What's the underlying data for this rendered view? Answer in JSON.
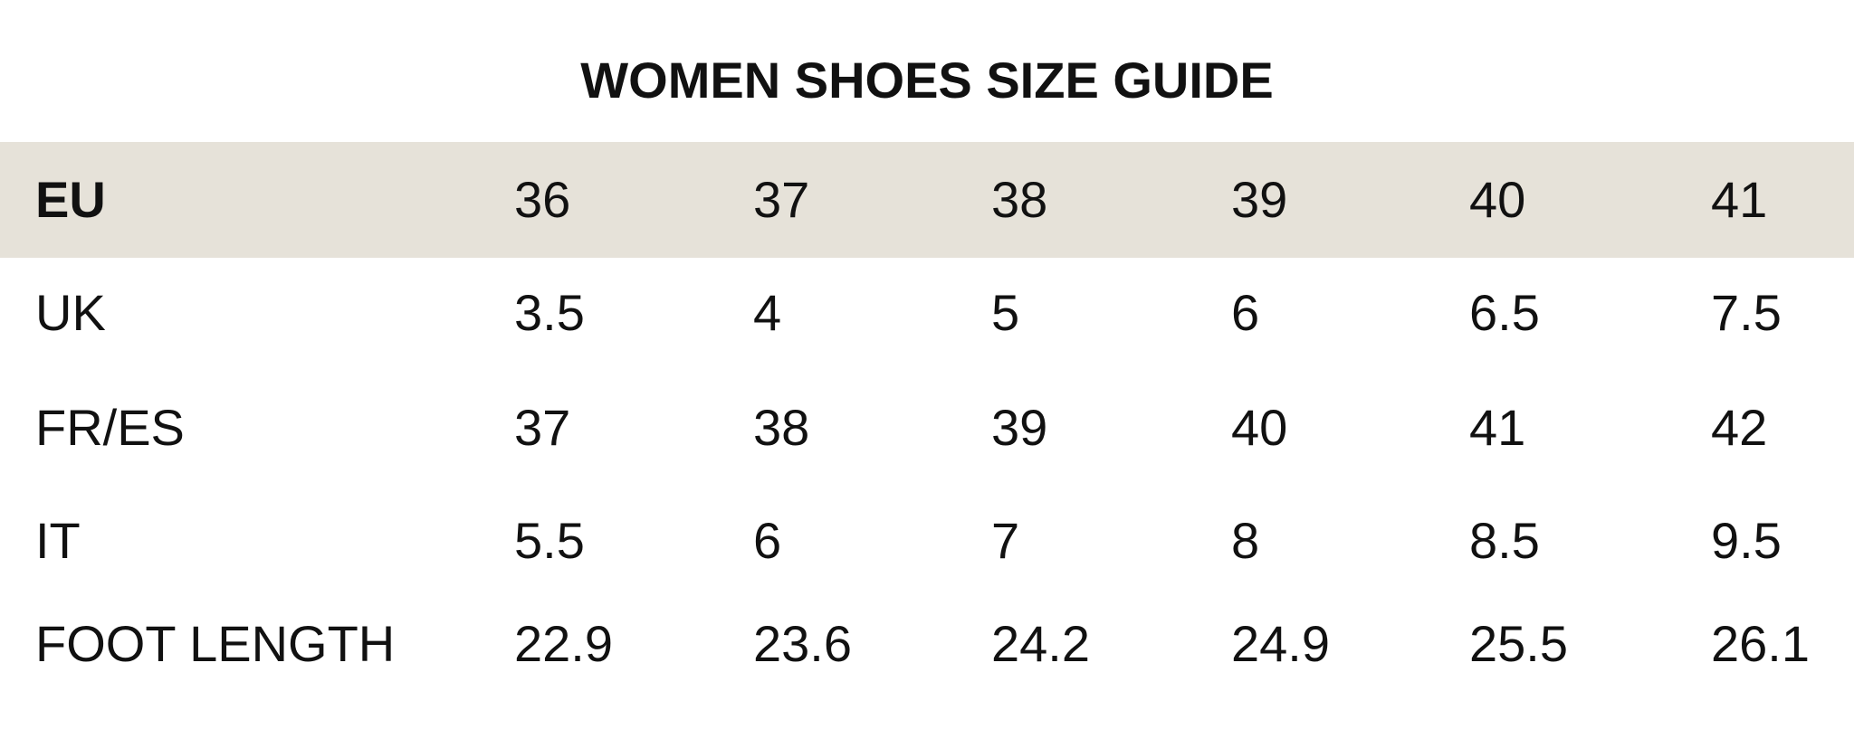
{
  "title": "WOMEN SHOES SIZE GUIDE",
  "header_bg": "#e6e2d9",
  "rows": [
    {
      "label": "EU",
      "values": [
        "36",
        "37",
        "38",
        "39",
        "40",
        "41"
      ]
    },
    {
      "label": "UK",
      "values": [
        "3.5",
        "4",
        "5",
        "6",
        "6.5",
        "7.5"
      ]
    },
    {
      "label": "FR/ES",
      "values": [
        "37",
        "38",
        "39",
        "40",
        "41",
        "42"
      ]
    },
    {
      "label": "IT",
      "values": [
        "5.5",
        "6",
        "7",
        "8",
        "8.5",
        "9.5"
      ]
    },
    {
      "label": "FOOT LENGTH",
      "values": [
        "22.9",
        "23.6",
        "24.2",
        "24.9",
        "25.5",
        "26.1"
      ]
    }
  ]
}
